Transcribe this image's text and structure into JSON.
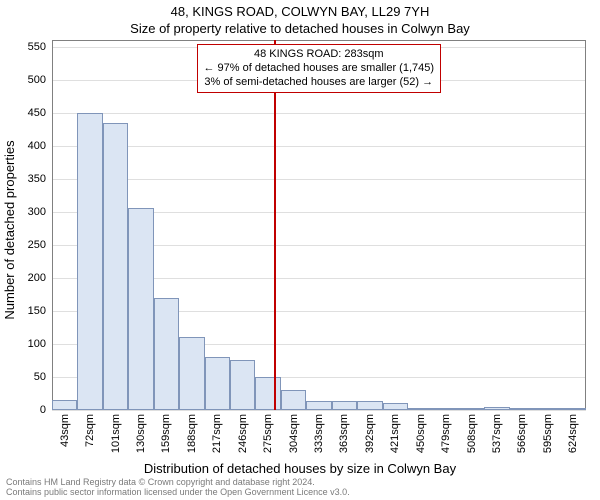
{
  "titles": {
    "address": "48, KINGS ROAD, COLWYN BAY, LL29 7YH",
    "subtitle": "Size of property relative to detached houses in Colwyn Bay"
  },
  "axes": {
    "y_label": "Number of detached properties",
    "x_label": "Distribution of detached houses by size in Colwyn Bay",
    "ylim": [
      0,
      560
    ],
    "y_ticks": [
      0,
      50,
      100,
      150,
      200,
      250,
      300,
      350,
      400,
      450,
      500,
      550
    ]
  },
  "styling": {
    "background_color": "#ffffff",
    "bar_fill": "#dbe5f3",
    "bar_border": "#8095b9",
    "grid_color": "#808080",
    "grid_opacity": 0.25,
    "axis_color": "#808080",
    "ref_color": "#c00000",
    "title_fontsize": 13,
    "tick_fontsize": 11,
    "attribution_color": "#7a7a7a"
  },
  "xtick_labels": [
    "43sqm",
    "72sqm",
    "101sqm",
    "130sqm",
    "159sqm",
    "188sqm",
    "217sqm",
    "246sqm",
    "275sqm",
    "304sqm",
    "333sqm",
    "363sqm",
    "392sqm",
    "421sqm",
    "450sqm",
    "479sqm",
    "508sqm",
    "537sqm",
    "566sqm",
    "595sqm",
    "624sqm"
  ],
  "histogram": {
    "type": "histogram",
    "bar_width_ratio": 1.0,
    "categories": [
      "43",
      "72",
      "101",
      "130",
      "159",
      "188",
      "217",
      "246",
      "275",
      "304",
      "333",
      "363",
      "392",
      "421",
      "450",
      "479",
      "508",
      "537",
      "566",
      "595",
      "624"
    ],
    "values": [
      15,
      450,
      435,
      305,
      170,
      110,
      80,
      75,
      50,
      30,
      13,
      13,
      13,
      10,
      3,
      3,
      2,
      4,
      2,
      2,
      2
    ]
  },
  "reference": {
    "value_sqm": 283,
    "box": {
      "line1": "48 KINGS ROAD: 283sqm",
      "line2": "← 97% of detached houses are smaller (1,745)",
      "line3": "3% of semi-detached houses are larger (52) →"
    }
  },
  "attribution": {
    "line1": "Contains HM Land Registry data © Crown copyright and database right 2024.",
    "line2": "Contains public sector information licensed under the Open Government Licence v3.0."
  }
}
